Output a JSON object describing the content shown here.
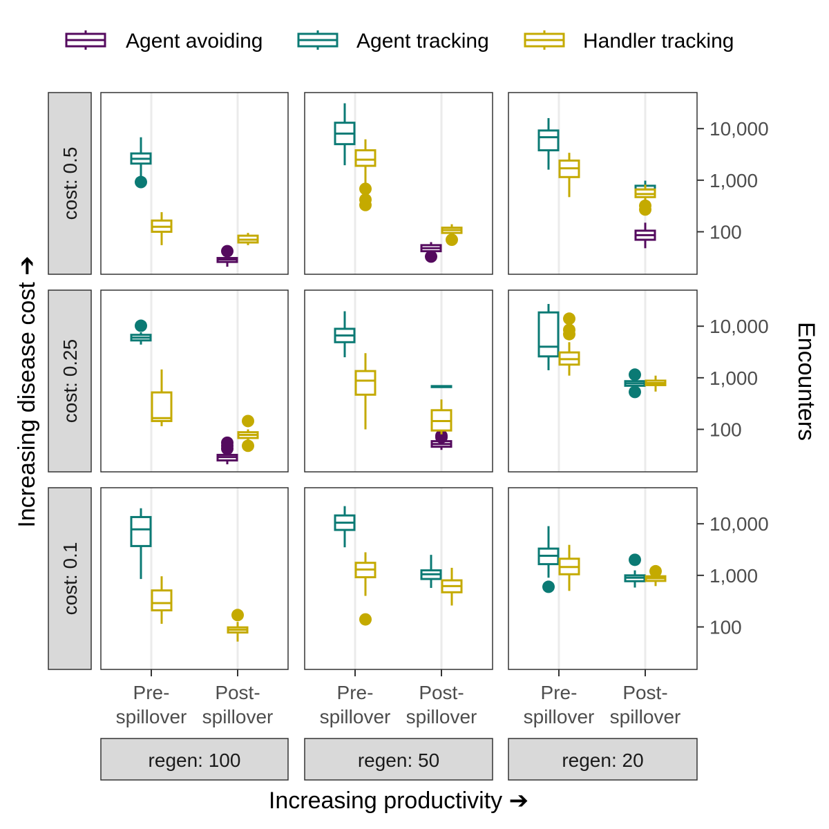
{
  "chart_data": {
    "type": "box",
    "xlabel": "Increasing productivity ➔",
    "ylabel_left": "Increasing disease cost ➔",
    "ylabel_right": "Encounters",
    "y_scale": "log10",
    "ylim": [
      15,
      50000
    ],
    "y_ticks": [
      {
        "value": 10000,
        "label": "10,000"
      },
      {
        "value": 1000,
        "label": "1,000"
      },
      {
        "value": 100,
        "label": "100"
      }
    ],
    "x_categories": [
      {
        "line1": "Pre-",
        "line2": "spillover"
      },
      {
        "line1": "Post-",
        "line2": "spillover"
      }
    ],
    "col_strips": [
      "regen: 100",
      "regen: 50",
      "regen: 20"
    ],
    "row_strips": [
      "cost: 0.5",
      "cost: 0.25",
      "cost: 0.1"
    ],
    "legend": {
      "position": "top",
      "entries": [
        {
          "name": "Agent avoiding",
          "color": "#540a5e"
        },
        {
          "name": "Agent tracking",
          "color": "#0b7a74"
        },
        {
          "name": "Handler tracking",
          "color": "#c4aa00"
        }
      ]
    },
    "grid": {
      "vertical": true,
      "horizontal": false
    },
    "panels": [
      {
        "row": 0,
        "col": 0,
        "boxes": [
          {
            "group": 0,
            "x": 0,
            "series": 1,
            "min": 700,
            "q1": 2100,
            "median": 2600,
            "q3": 3300,
            "max": 6800,
            "outliers": [
              920
            ]
          },
          {
            "group": 0,
            "x": 0,
            "series": 2,
            "min": 55,
            "q1": 100,
            "median": 125,
            "q3": 165,
            "max": 240,
            "outliers": []
          },
          {
            "group": 1,
            "x": 1,
            "series": 0,
            "min": 21,
            "q1": 26,
            "median": 29,
            "q3": 31,
            "max": 34,
            "outliers": [
              42
            ]
          },
          {
            "group": 1,
            "x": 1,
            "series": 2,
            "min": 55,
            "q1": 62,
            "median": 70,
            "q3": 84,
            "max": 95,
            "outliers": []
          }
        ]
      },
      {
        "row": 0,
        "col": 1,
        "boxes": [
          {
            "group": 0,
            "x": 0,
            "series": 1,
            "min": 1950,
            "q1": 5000,
            "median": 8000,
            "q3": 13000,
            "max": 31000,
            "outliers": []
          },
          {
            "group": 0,
            "x": 0,
            "series": 2,
            "min": 850,
            "q1": 1900,
            "median": 2500,
            "q3": 3800,
            "max": 6200,
            "outliers": [
              680,
              420,
              330
            ]
          },
          {
            "group": 1,
            "x": 1,
            "series": 0,
            "min": 36,
            "q1": 42,
            "median": 48,
            "q3": 55,
            "max": 63,
            "outliers": [
              33
            ]
          },
          {
            "group": 1,
            "x": 1,
            "series": 2,
            "min": 85,
            "q1": 95,
            "median": 108,
            "q3": 120,
            "max": 140,
            "outliers": [
              70
            ]
          }
        ]
      },
      {
        "row": 0,
        "col": 2,
        "boxes": [
          {
            "group": 0,
            "x": 0,
            "series": 1,
            "min": 1600,
            "q1": 3800,
            "median": 6800,
            "q3": 9200,
            "max": 16000,
            "outliers": []
          },
          {
            "group": 0,
            "x": 0,
            "series": 2,
            "min": 470,
            "q1": 1150,
            "median": 1700,
            "q3": 2400,
            "max": 3400,
            "outliers": []
          },
          {
            "group": 1,
            "x": 1,
            "series": 0,
            "min": 48,
            "q1": 70,
            "median": 86,
            "q3": 105,
            "max": 150,
            "outliers": []
          },
          {
            "group": 1,
            "x": 1,
            "series": 1,
            "min": 480,
            "q1": 580,
            "median": 660,
            "q3": 780,
            "max": 980,
            "outliers": []
          },
          {
            "group": 1,
            "x": 1,
            "series": 2,
            "min": 380,
            "q1": 470,
            "median": 540,
            "q3": 660,
            "max": 820,
            "outliers": [
              320,
              270
            ]
          }
        ]
      },
      {
        "row": 1,
        "col": 0,
        "boxes": [
          {
            "group": 0,
            "x": 0,
            "series": 1,
            "min": 4400,
            "q1": 5300,
            "median": 6000,
            "q3": 6800,
            "max": 7600,
            "outliers": [
              10200
            ]
          },
          {
            "group": 0,
            "x": 0,
            "series": 2,
            "min": 115,
            "q1": 145,
            "median": 165,
            "q3": 520,
            "max": 1450,
            "outliers": []
          },
          {
            "group": 1,
            "x": 1,
            "series": 0,
            "min": 21,
            "q1": 25,
            "median": 29,
            "q3": 32,
            "max": 38,
            "outliers": [
              42,
              48,
              55
            ]
          },
          {
            "group": 1,
            "x": 1,
            "series": 2,
            "min": 55,
            "q1": 68,
            "median": 78,
            "q3": 88,
            "max": 100,
            "outliers": [
              48,
              145
            ]
          }
        ]
      },
      {
        "row": 1,
        "col": 1,
        "boxes": [
          {
            "group": 0,
            "x": 0,
            "series": 1,
            "min": 2500,
            "q1": 4900,
            "median": 6600,
            "q3": 8900,
            "max": 19500,
            "outliers": []
          },
          {
            "group": 0,
            "x": 0,
            "series": 2,
            "min": 100,
            "q1": 470,
            "median": 880,
            "q3": 1350,
            "max": 3000,
            "outliers": []
          },
          {
            "group": 1,
            "x": 1,
            "series": 0,
            "min": 40,
            "q1": 46,
            "median": 52,
            "q3": 59,
            "max": 65,
            "outliers": [
              70,
              75
            ]
          },
          {
            "group": 1,
            "x": 1,
            "series": 1,
            "min": 640,
            "q1": 660,
            "median": 675,
            "q3": 690,
            "max": 710,
            "outliers": []
          },
          {
            "group": 1,
            "x": 1,
            "series": 2,
            "min": 80,
            "q1": 95,
            "median": 145,
            "q3": 235,
            "max": 380,
            "outliers": []
          }
        ]
      },
      {
        "row": 1,
        "col": 2,
        "boxes": [
          {
            "group": 0,
            "x": 0,
            "series": 1,
            "min": 1400,
            "q1": 2600,
            "median": 4000,
            "q3": 18500,
            "max": 27000,
            "outliers": []
          },
          {
            "group": 0,
            "x": 0,
            "series": 2,
            "min": 1100,
            "q1": 1800,
            "median": 2300,
            "q3": 3100,
            "max": 4900,
            "outliers": [
              7000,
              8500,
              14000
            ]
          },
          {
            "group": 1,
            "x": 1,
            "series": 1,
            "min": 580,
            "q1": 700,
            "median": 780,
            "q3": 860,
            "max": 960,
            "outliers": [
              1150,
              530
            ]
          },
          {
            "group": 1,
            "x": 1,
            "series": 2,
            "min": 540,
            "q1": 720,
            "median": 790,
            "q3": 880,
            "max": 1100,
            "outliers": []
          }
        ]
      },
      {
        "row": 2,
        "col": 0,
        "boxes": [
          {
            "group": 0,
            "x": 0,
            "series": 1,
            "min": 850,
            "q1": 3700,
            "median": 7800,
            "q3": 13500,
            "max": 20000,
            "outliers": []
          },
          {
            "group": 0,
            "x": 0,
            "series": 2,
            "min": 115,
            "q1": 210,
            "median": 290,
            "q3": 510,
            "max": 960,
            "outliers": []
          },
          {
            "group": 1,
            "x": 1,
            "series": 2,
            "min": 52,
            "q1": 78,
            "median": 88,
            "q3": 98,
            "max": 125,
            "outliers": [
              170
            ]
          }
        ]
      },
      {
        "row": 2,
        "col": 1,
        "boxes": [
          {
            "group": 0,
            "x": 0,
            "series": 1,
            "min": 3500,
            "q1": 7600,
            "median": 10500,
            "q3": 14500,
            "max": 22000,
            "outliers": []
          },
          {
            "group": 0,
            "x": 0,
            "series": 2,
            "min": 400,
            "q1": 920,
            "median": 1300,
            "q3": 1750,
            "max": 2800,
            "outliers": [
              140
            ]
          },
          {
            "group": 1,
            "x": 1,
            "series": 1,
            "min": 570,
            "q1": 850,
            "median": 1050,
            "q3": 1250,
            "max": 2500,
            "outliers": []
          },
          {
            "group": 1,
            "x": 1,
            "series": 2,
            "min": 260,
            "q1": 470,
            "median": 620,
            "q3": 800,
            "max": 1400,
            "outliers": []
          }
        ]
      },
      {
        "row": 2,
        "col": 2,
        "boxes": [
          {
            "group": 0,
            "x": 0,
            "series": 1,
            "min": 900,
            "q1": 1650,
            "median": 2400,
            "q3": 3300,
            "max": 9000,
            "outliers": [
              600
            ]
          },
          {
            "group": 0,
            "x": 0,
            "series": 2,
            "min": 500,
            "q1": 1050,
            "median": 1450,
            "q3": 2100,
            "max": 3900,
            "outliers": []
          },
          {
            "group": 1,
            "x": 1,
            "series": 1,
            "min": 580,
            "q1": 770,
            "median": 900,
            "q3": 1000,
            "max": 1250,
            "outliers": [
              2000
            ]
          },
          {
            "group": 1,
            "x": 1,
            "series": 2,
            "min": 620,
            "q1": 780,
            "median": 880,
            "q3": 960,
            "max": 1050,
            "outliers": [
              1200
            ]
          }
        ]
      }
    ]
  }
}
